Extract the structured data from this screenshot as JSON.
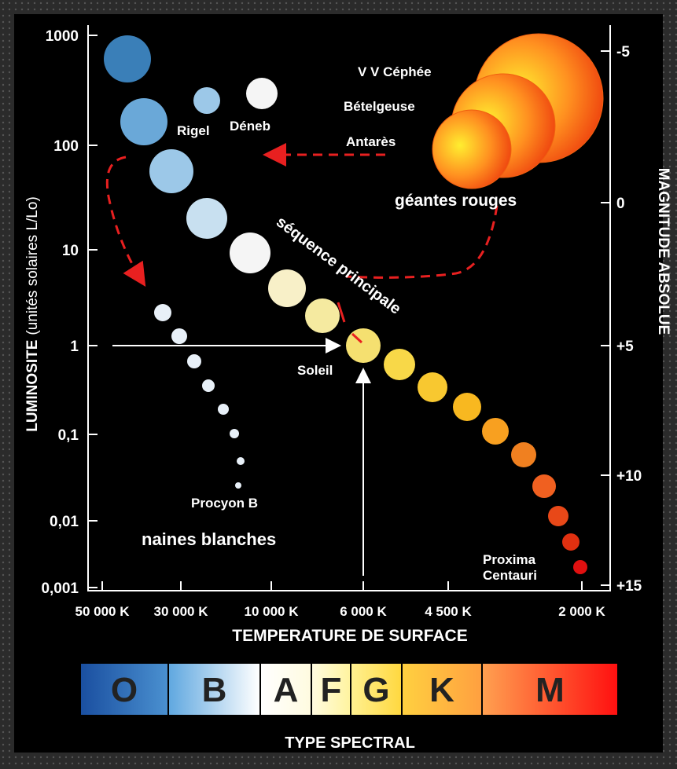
{
  "title_left": {
    "main": "LUMINOSITE",
    "sub": "(unités solaires L/Lo)"
  },
  "title_right": "MAGNITUDE ABSOLUE",
  "title_bottom": "TEMPERATURE DE SURFACE",
  "luminosity_ticks": [
    "1000",
    "100",
    "10",
    "1",
    "0,1",
    "0,01",
    "0,001"
  ],
  "magnitude_ticks": [
    "-5",
    "0",
    "+5",
    "+10",
    "+15"
  ],
  "temperature_ticks": [
    "50 000 K",
    "30 000 K",
    "10 000 K",
    "6 000 K",
    "4 500 K",
    "2 000 K"
  ],
  "labels": {
    "vv_cephee": "V V Céphée",
    "betelgeuse": "Bételgeuse",
    "antares": "Antarès",
    "red_giants": "géantes rouges",
    "rigel": "Rigel",
    "deneb": "Déneb",
    "main_sequence": "séquence principale",
    "sun": "Soleil",
    "procyon_b": "Procyon B",
    "white_dwarfs": "naines blanches",
    "proxima": [
      "Proxima",
      "Centauri"
    ]
  },
  "spectral_types": [
    "O",
    "B",
    "A",
    "F",
    "G",
    "K",
    "M"
  ],
  "spectral_title": "TYPE SPECTRAL"
}
